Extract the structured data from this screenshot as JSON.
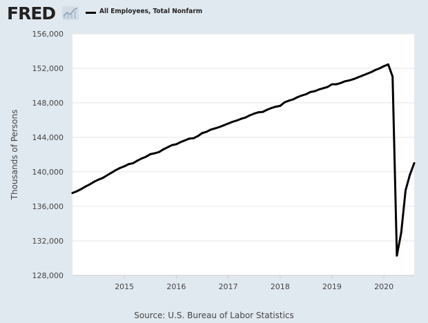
{
  "header": {
    "logo_text": "FRED",
    "legend_label": "All Employees, Total Nonfarm"
  },
  "source": "Source: U.S. Bureau of Labor Statistics",
  "chart_data": {
    "type": "line",
    "title": "",
    "xlabel": "",
    "ylabel": "Thousands of Persons",
    "x_tick_labels": [
      "2015",
      "2016",
      "2017",
      "2018",
      "2019",
      "2020"
    ],
    "y_tick_labels": [
      "128,000",
      "132,000",
      "136,000",
      "140,000",
      "144,000",
      "148,000",
      "152,000",
      "156,000"
    ],
    "ylim": [
      128000,
      156000
    ],
    "xlim": [
      "2014-01",
      "2020-08"
    ],
    "grid": true,
    "legend_position": "top-left",
    "colors": {
      "series": "#000000",
      "background": "#e1e9f0",
      "plot": "#ffffff",
      "grid": "#e6e6e6"
    },
    "series": [
      {
        "name": "All Employees, Total Nonfarm",
        "x": [
          "2014-01",
          "2014-02",
          "2014-03",
          "2014-04",
          "2014-05",
          "2014-06",
          "2014-07",
          "2014-08",
          "2014-09",
          "2014-10",
          "2014-11",
          "2014-12",
          "2015-01",
          "2015-02",
          "2015-03",
          "2015-04",
          "2015-05",
          "2015-06",
          "2015-07",
          "2015-08",
          "2015-09",
          "2015-10",
          "2015-11",
          "2015-12",
          "2016-01",
          "2016-02",
          "2016-03",
          "2016-04",
          "2016-05",
          "2016-06",
          "2016-07",
          "2016-08",
          "2016-09",
          "2016-10",
          "2016-11",
          "2016-12",
          "2017-01",
          "2017-02",
          "2017-03",
          "2017-04",
          "2017-05",
          "2017-06",
          "2017-07",
          "2017-08",
          "2017-09",
          "2017-10",
          "2017-11",
          "2017-12",
          "2018-01",
          "2018-02",
          "2018-03",
          "2018-04",
          "2018-05",
          "2018-06",
          "2018-07",
          "2018-08",
          "2018-09",
          "2018-10",
          "2018-11",
          "2018-12",
          "2019-01",
          "2019-02",
          "2019-03",
          "2019-04",
          "2019-05",
          "2019-06",
          "2019-07",
          "2019-08",
          "2019-09",
          "2019-10",
          "2019-11",
          "2019-12",
          "2020-01",
          "2020-02",
          "2020-03",
          "2020-04",
          "2020-05",
          "2020-06",
          "2020-07",
          "2020-08"
        ],
        "values": [
          137550,
          137750,
          138000,
          138300,
          138550,
          138850,
          139100,
          139300,
          139600,
          139900,
          140200,
          140450,
          140650,
          140900,
          141000,
          141300,
          141550,
          141750,
          142050,
          142150,
          142300,
          142600,
          142850,
          143100,
          143200,
          143450,
          143650,
          143850,
          143900,
          144150,
          144500,
          144650,
          144900,
          145050,
          145200,
          145400,
          145600,
          145800,
          145950,
          146150,
          146300,
          146550,
          146750,
          146900,
          146950,
          147200,
          147400,
          147550,
          147650,
          148050,
          148250,
          148400,
          148650,
          148850,
          149000,
          149250,
          149350,
          149550,
          149700,
          149850,
          150150,
          150150,
          150300,
          150500,
          150600,
          150750,
          150950,
          151150,
          151350,
          151550,
          151800,
          152000,
          152250,
          152450,
          151050,
          130300,
          132950,
          137850,
          139650,
          141000
        ]
      }
    ]
  }
}
